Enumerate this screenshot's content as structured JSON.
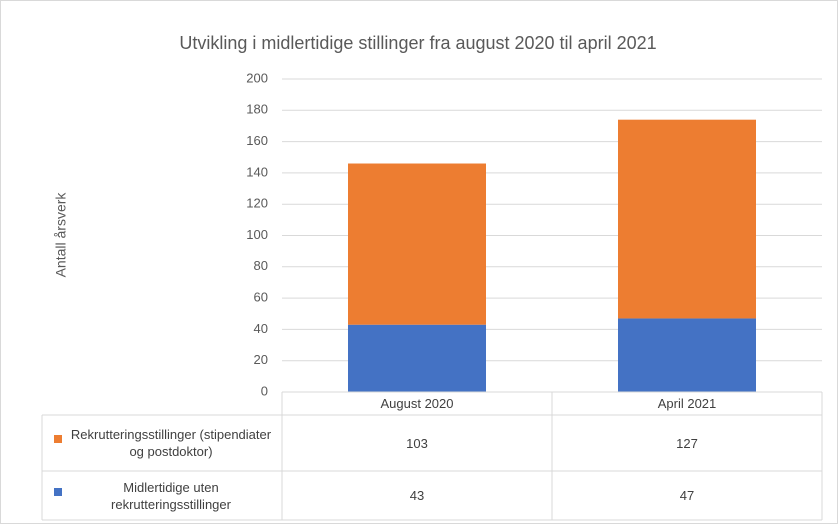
{
  "chart_data": {
    "type": "stacked_bar",
    "title": "Utvikling i midlertidige stillinger fra august 2020 til april 2021",
    "y_label": "Antall årsverk",
    "categories": [
      "August 2020",
      "April 2021"
    ],
    "series": [
      {
        "name": "Midlertidige uten rekrutteringsstillinger",
        "color": "#4472c4",
        "values": [
          43,
          47
        ]
      },
      {
        "name": "Rekrutteringsstillinger (stipendiater og postdoktor)",
        "color": "#ed7d31",
        "values": [
          103,
          127
        ]
      }
    ],
    "ylim": [
      0,
      200
    ],
    "yticks": [
      0,
      20,
      40,
      60,
      80,
      100,
      120,
      140,
      160,
      180,
      200
    ],
    "grid": true
  }
}
